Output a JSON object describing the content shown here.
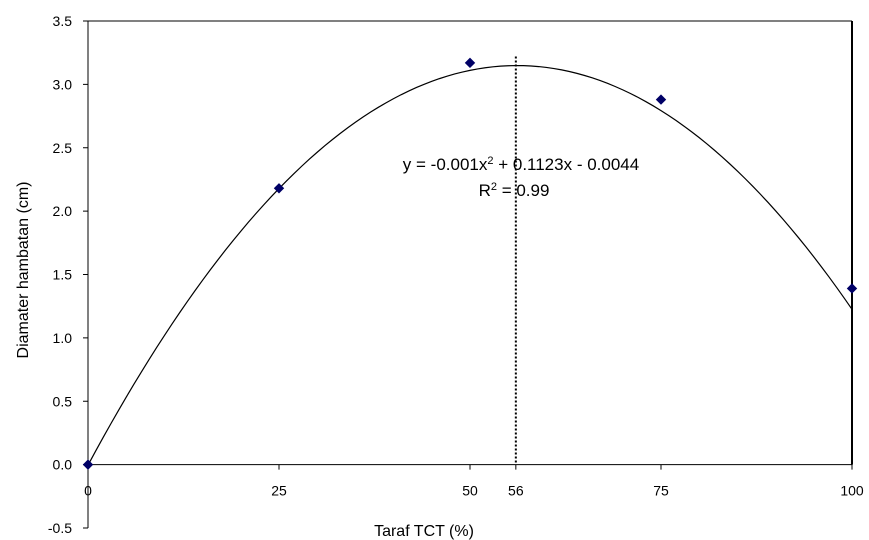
{
  "chart_data": {
    "type": "scatter",
    "xlabel": "Taraf TCT (%)",
    "ylabel": "Diamater hambatan (cm)",
    "xlim": [
      0,
      100
    ],
    "ylim": [
      -0.5,
      3.5
    ],
    "x_ticks": [
      "0",
      "25",
      "50",
      "56",
      "75",
      "100"
    ],
    "y_ticks": [
      "-0.5",
      "0.0",
      "0.5",
      "1.0",
      "1.5",
      "2.0",
      "2.5",
      "3.0",
      "3.5"
    ],
    "grid": false,
    "series": [
      {
        "marker": "diamond",
        "color": "#000066",
        "points": [
          {
            "x": 0,
            "y": 0.0
          },
          {
            "x": 25,
            "y": 2.18
          },
          {
            "x": 50,
            "y": 3.17
          },
          {
            "x": 75,
            "y": 2.88
          },
          {
            "x": 100,
            "y": 1.39
          }
        ]
      }
    ],
    "trendline": {
      "type": "polynomial",
      "coefficients": {
        "a": -0.001,
        "b": 0.1123,
        "c": -0.0044
      },
      "equation": "y = -0.001x² + 0.1123x - 0.0044",
      "r_squared": "R² = 0.99",
      "color": "#000000"
    },
    "reference_line": {
      "x": 56,
      "style": "dotted",
      "color": "#000000"
    }
  }
}
